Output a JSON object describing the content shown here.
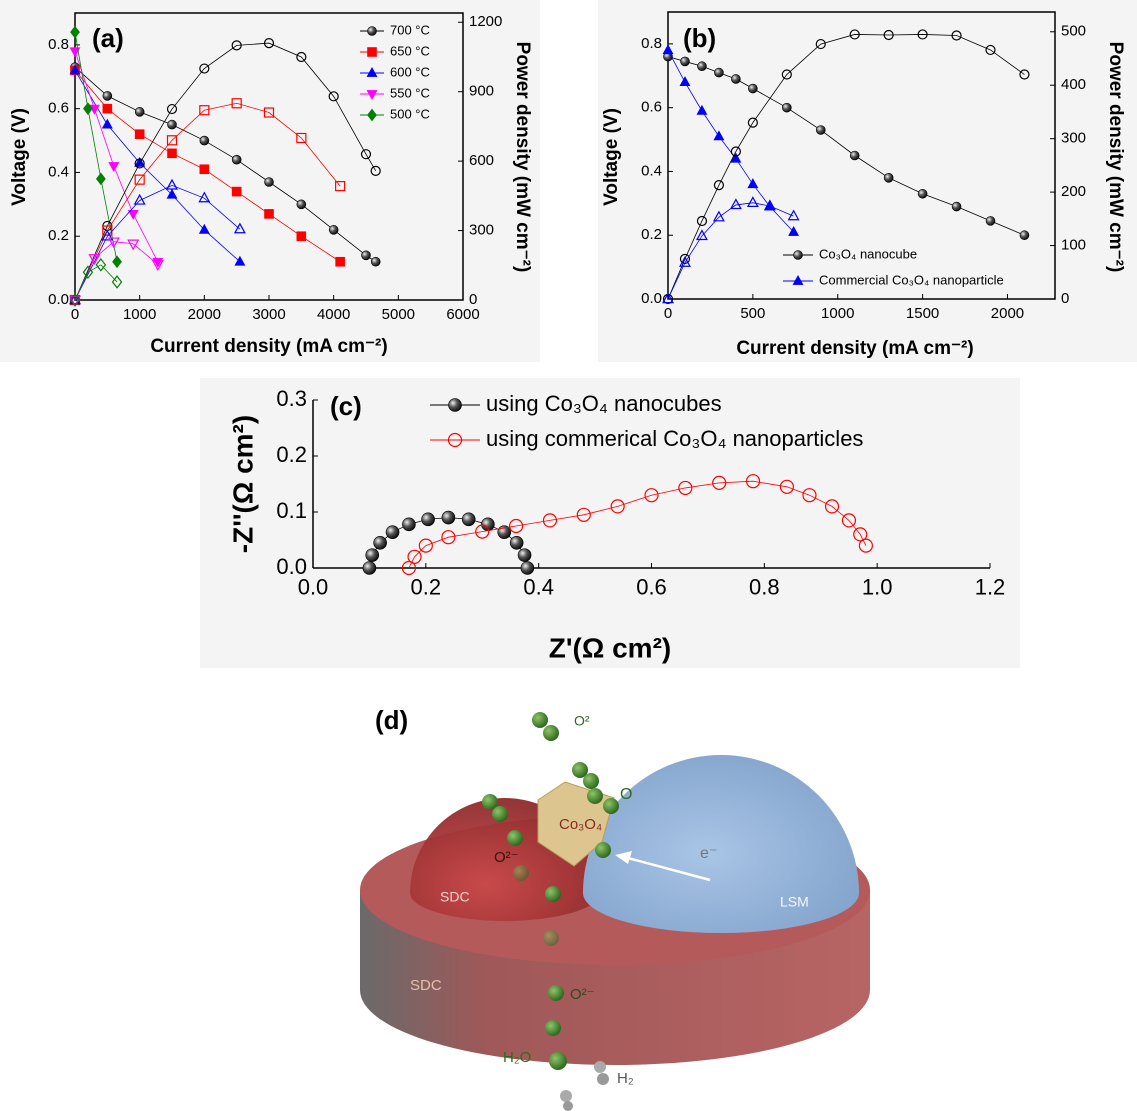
{
  "chart_data": [
    {
      "type": "line",
      "panel_label": "(a)",
      "xlabel": "Current density (mA cm⁻²)",
      "ylabel": "Voltage (V)",
      "y2label": "Power density (mW cm⁻²)",
      "xlim": [
        0,
        6000
      ],
      "ylim": [
        0,
        0.9
      ],
      "y2lim": [
        0,
        1240
      ],
      "xticks": [
        0,
        1000,
        2000,
        3000,
        4000,
        5000,
        6000
      ],
      "yticks": [
        {
          "value": 0,
          "label": "0.0"
        },
        {
          "value": 0.2,
          "label": "0.2"
        },
        {
          "value": 0.4,
          "label": "0.4"
        },
        {
          "value": 0.6,
          "label": "0.6"
        },
        {
          "value": 0.8,
          "label": "0.8"
        }
      ],
      "y2ticks": [
        0,
        300,
        600,
        900,
        1200
      ],
      "frame": true,
      "legend": "upper right",
      "series": [
        {
          "name": "700 °C",
          "color": "#000000",
          "marker": "ball",
          "x": [
            0,
            500,
            1000,
            1500,
            2000,
            2500,
            3000,
            3500,
            4000,
            4500,
            4650
          ],
          "values": [
            0.73,
            0.64,
            0.59,
            0.55,
            0.5,
            0.44,
            0.37,
            0.3,
            0.22,
            0.14,
            0.12
          ]
        },
        {
          "name": "650 °C",
          "color": "#ff0000",
          "marker": "square",
          "x": [
            0,
            500,
            1000,
            1500,
            2000,
            2500,
            3000,
            3500,
            4100
          ],
          "values": [
            0.72,
            0.6,
            0.52,
            0.46,
            0.41,
            0.34,
            0.27,
            0.2,
            0.12
          ]
        },
        {
          "name": "600 °C",
          "color": "#0000ff",
          "marker": "triangle",
          "x": [
            0,
            500,
            1000,
            1500,
            2000,
            2550
          ],
          "values": [
            0.72,
            0.55,
            0.43,
            0.33,
            0.22,
            0.12
          ]
        },
        {
          "name": "550 °C",
          "color": "#ff00ff",
          "marker": "triangle-down",
          "x": [
            0,
            300,
            600,
            900,
            1280
          ],
          "values": [
            0.78,
            0.6,
            0.42,
            0.27,
            0.12
          ]
        },
        {
          "name": "500 °C",
          "color": "#008000",
          "marker": "diamond",
          "x": [
            0,
            200,
            400,
            650
          ],
          "values": [
            0.84,
            0.6,
            0.38,
            0.12
          ]
        },
        {
          "color": "#000000",
          "marker": "ball",
          "open": true,
          "axis": "y2",
          "x": [
            0,
            500,
            1000,
            1500,
            2000,
            2500,
            3000,
            3500,
            4000,
            4500,
            4650
          ],
          "values": [
            0,
            320,
            590,
            825,
            1000,
            1100,
            1110,
            1050,
            880,
            630,
            558
          ]
        },
        {
          "color": "#ff0000",
          "marker": "square",
          "open": true,
          "axis": "y2",
          "x": [
            0,
            500,
            1000,
            1500,
            2000,
            2500,
            3000,
            3500,
            4100
          ],
          "values": [
            0,
            300,
            520,
            690,
            820,
            850,
            810,
            700,
            492
          ]
        },
        {
          "color": "#0000ff",
          "marker": "triangle",
          "open": true,
          "axis": "y2",
          "x": [
            0,
            500,
            1000,
            1500,
            2000,
            2550
          ],
          "values": [
            0,
            275,
            430,
            495,
            440,
            306
          ]
        },
        {
          "color": "#ff00ff",
          "marker": "triangle-down",
          "open": true,
          "axis": "y2",
          "x": [
            0,
            300,
            600,
            900,
            1280
          ],
          "values": [
            0,
            180,
            252,
            243,
            154
          ]
        },
        {
          "color": "#008000",
          "marker": "diamond",
          "open": true,
          "axis": "y2",
          "x": [
            0,
            200,
            400,
            650
          ],
          "values": [
            0,
            120,
            152,
            78
          ]
        }
      ]
    },
    {
      "type": "line",
      "panel_label": "(b)",
      "xlabel": "Current density (mA cm⁻²)",
      "ylabel": "Voltage (V)",
      "y2label": "Power density (mW cm⁻²)",
      "xlim": [
        0,
        2280
      ],
      "ylim": [
        0,
        0.9
      ],
      "y2lim": [
        0,
        537
      ],
      "xticks": [
        0,
        500,
        1000,
        1500,
        2000
      ],
      "yticks": [
        {
          "value": 0,
          "label": "0.0"
        },
        {
          "value": 0.2,
          "label": "0.2"
        },
        {
          "value": 0.4,
          "label": "0.4"
        },
        {
          "value": 0.6,
          "label": "0.6"
        },
        {
          "value": 0.8,
          "label": "0.8"
        }
      ],
      "y2ticks": [
        0,
        100,
        200,
        300,
        400,
        500
      ],
      "frame": true,
      "legend": "lower right",
      "series": [
        {
          "name": "Co₃O₄ nanocube",
          "color": "#000000",
          "marker": "ball",
          "x": [
            0,
            100,
            200,
            300,
            400,
            500,
            700,
            900,
            1100,
            1300,
            1500,
            1700,
            1900,
            2100
          ],
          "values": [
            0.76,
            0.745,
            0.73,
            0.71,
            0.69,
            0.66,
            0.6,
            0.53,
            0.45,
            0.38,
            0.33,
            0.29,
            0.245,
            0.2
          ]
        },
        {
          "name": "Commercial Co₃O₄ nanoparticle",
          "color": "#0000ff",
          "marker": "triangle",
          "x": [
            0,
            100,
            200,
            300,
            400,
            500,
            600,
            740
          ],
          "values": [
            0.78,
            0.68,
            0.59,
            0.51,
            0.44,
            0.36,
            0.29,
            0.21
          ]
        },
        {
          "color": "#000000",
          "marker": "ball",
          "open": true,
          "axis": "y2",
          "x": [
            0,
            100,
            200,
            300,
            400,
            500,
            700,
            900,
            1100,
            1300,
            1500,
            1700,
            1900,
            2100
          ],
          "values": [
            0,
            75,
            146,
            213,
            276,
            330,
            420,
            477,
            495,
            494,
            495,
            493,
            466,
            420
          ]
        },
        {
          "color": "#0000ff",
          "marker": "triangle",
          "open": true,
          "axis": "y2",
          "x": [
            0,
            100,
            200,
            300,
            400,
            500,
            600,
            740
          ],
          "values": [
            0,
            68,
            118,
            153,
            176,
            180,
            174,
            155
          ]
        }
      ]
    },
    {
      "type": "scatter",
      "panel_label": "(c)",
      "xlabel": "Z'(Ω cm²)",
      "ylabel": "-Z''(Ω cm²)",
      "xlim": [
        0,
        1.2
      ],
      "ylim": [
        0,
        0.3
      ],
      "xticks": [
        {
          "value": 0,
          "label": "0.0"
        },
        {
          "value": 0.2,
          "label": "0.2"
        },
        {
          "value": 0.4,
          "label": "0.4"
        },
        {
          "value": 0.6,
          "label": "0.6"
        },
        {
          "value": 0.8,
          "label": "0.8"
        },
        {
          "value": 1,
          "label": "1.0"
        },
        {
          "value": 1.2,
          "label": "1.2"
        }
      ],
      "yticks": [
        {
          "value": 0,
          "label": "0.0"
        },
        {
          "value": 0.1,
          "label": "0.1"
        },
        {
          "value": 0.2,
          "label": "0.2"
        },
        {
          "value": 0.3,
          "label": "0.3"
        }
      ],
      "frame": false,
      "legend": "upper left",
      "series": [
        {
          "name": "using Co₃O₄ nanocubes",
          "color": "#000000",
          "marker": "ball",
          "x": [
            0.1,
            0.105,
            0.119,
            0.141,
            0.17,
            0.204,
            0.24,
            0.276,
            0.31,
            0.339,
            0.361,
            0.375,
            0.38
          ],
          "values": [
            0,
            0.023,
            0.045,
            0.064,
            0.078,
            0.087,
            0.09,
            0.087,
            0.078,
            0.064,
            0.045,
            0.023,
            0
          ]
        },
        {
          "name": "using commerical Co₃O₄ nanoparticles",
          "color": "#ff0000",
          "marker": "circle",
          "open": true,
          "x": [
            0.17,
            0.18,
            0.2,
            0.24,
            0.3,
            0.36,
            0.42,
            0.48,
            0.54,
            0.6,
            0.66,
            0.72,
            0.78,
            0.84,
            0.88,
            0.92,
            0.95,
            0.97,
            0.98
          ],
          "values": [
            0,
            0.02,
            0.04,
            0.055,
            0.065,
            0.075,
            0.085,
            0.095,
            0.11,
            0.13,
            0.143,
            0.152,
            0.155,
            0.145,
            0.13,
            0.11,
            0.085,
            0.06,
            0.04
          ]
        }
      ]
    }
  ],
  "diagram": {
    "panel_label": "(d)",
    "labels": [
      "O²",
      "O",
      "Co₃O₄",
      "O²⁻",
      "SDC",
      "e⁻",
      "LSM",
      "SDC",
      "O²⁻",
      "H₂O",
      "H₂"
    ]
  }
}
